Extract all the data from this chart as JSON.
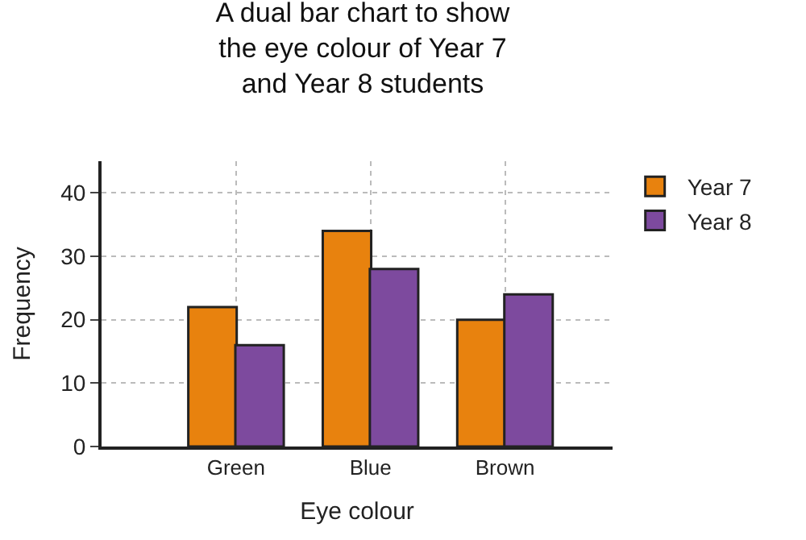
{
  "chart_data": {
    "type": "bar",
    "title": "A dual bar chart to show the eye colour of Year 7 and Year 8 students",
    "xlabel": "Eye colour",
    "ylabel": "Frequency",
    "categories": [
      "Green",
      "Blue",
      "Brown"
    ],
    "series": [
      {
        "name": "Year 7",
        "color": "#e8820e",
        "values": [
          22,
          34,
          20
        ]
      },
      {
        "name": "Year 8",
        "color": "#7d4a9e",
        "values": [
          16,
          28,
          24
        ]
      }
    ],
    "ylim": [
      0,
      45
    ],
    "yticks": [
      0,
      10,
      20,
      30,
      40
    ],
    "grid": true,
    "legend": "top right"
  }
}
